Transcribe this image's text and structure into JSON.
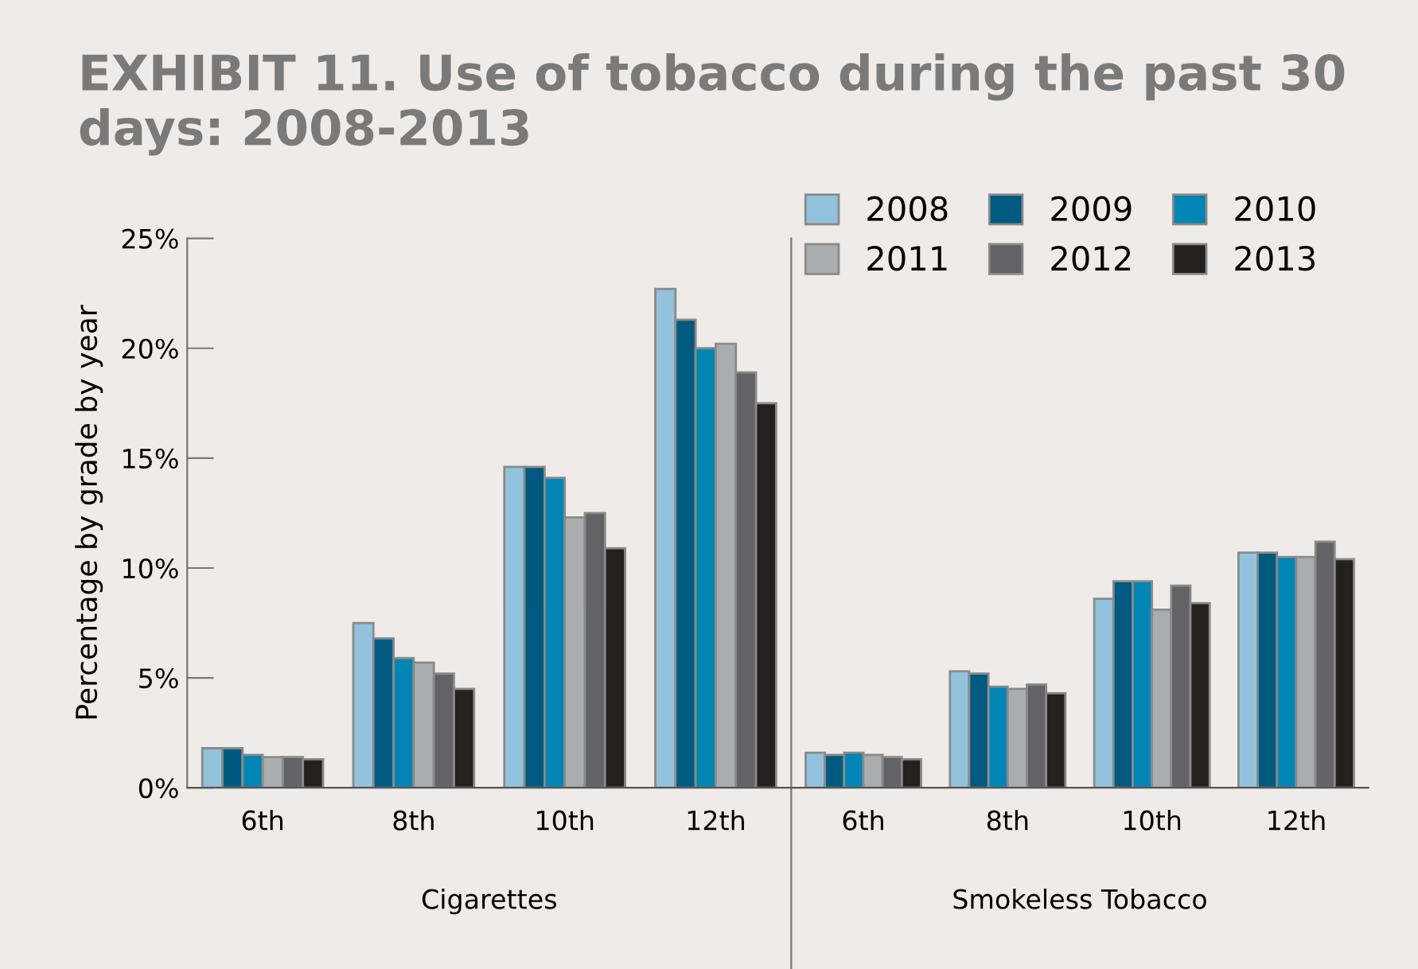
{
  "chart_data": [
    {
      "type": "bar",
      "title": "EXHIBIT 11. Use of tobacco during the past 30 days: 2008-2013",
      "ylabel": "Percentage by grade by year",
      "xlabel": "Cigarettes",
      "categories": [
        "6th",
        "8th",
        "10th",
        "12th"
      ],
      "series": [
        {
          "name": "2008",
          "color": "#93c3dc",
          "values": [
            1.8,
            7.5,
            14.6,
            22.7
          ]
        },
        {
          "name": "2009",
          "color": "#005a80",
          "values": [
            1.8,
            6.8,
            14.6,
            21.3
          ]
        },
        {
          "name": "2010",
          "color": "#0085b5",
          "values": [
            1.5,
            5.9,
            14.1,
            20.0
          ]
        },
        {
          "name": "2011",
          "color": "#abacae",
          "values": [
            1.4,
            5.7,
            12.3,
            20.2
          ]
        },
        {
          "name": "2012",
          "color": "#636264",
          "values": [
            1.4,
            5.2,
            12.5,
            18.9
          ]
        },
        {
          "name": "2013",
          "color": "#222120",
          "values": [
            1.3,
            4.5,
            10.9,
            17.5
          ]
        }
      ],
      "ylim": [
        0,
        25
      ],
      "yticks": [
        {
          "value": 0,
          "label": "0%"
        },
        {
          "value": 5,
          "label": "5%"
        },
        {
          "value": 10,
          "label": "10%"
        },
        {
          "value": 15,
          "label": "15%"
        },
        {
          "value": 20,
          "label": "20%"
        },
        {
          "value": 25,
          "label": "25%"
        }
      ],
      "grid": false,
      "legend": "top right"
    },
    {
      "type": "bar",
      "xlabel": "Smokeless Tobacco",
      "categories": [
        "6th",
        "8th",
        "10th",
        "12th"
      ],
      "series": [
        {
          "name": "2008",
          "color": "#93c3dc",
          "values": [
            1.6,
            5.3,
            8.6,
            10.7
          ]
        },
        {
          "name": "2009",
          "color": "#005a80",
          "values": [
            1.5,
            5.2,
            9.4,
            10.7
          ]
        },
        {
          "name": "2010",
          "color": "#0085b5",
          "values": [
            1.6,
            4.6,
            9.4,
            10.5
          ]
        },
        {
          "name": "2011",
          "color": "#abacae",
          "values": [
            1.5,
            4.5,
            8.1,
            10.5
          ]
        },
        {
          "name": "2012",
          "color": "#636264",
          "values": [
            1.4,
            4.7,
            9.2,
            11.2
          ]
        },
        {
          "name": "2013",
          "color": "#222120",
          "values": [
            1.3,
            4.3,
            8.4,
            10.4
          ]
        }
      ],
      "ylim": [
        0,
        25
      ],
      "tick_labels": "x",
      "grid": false
    }
  ]
}
